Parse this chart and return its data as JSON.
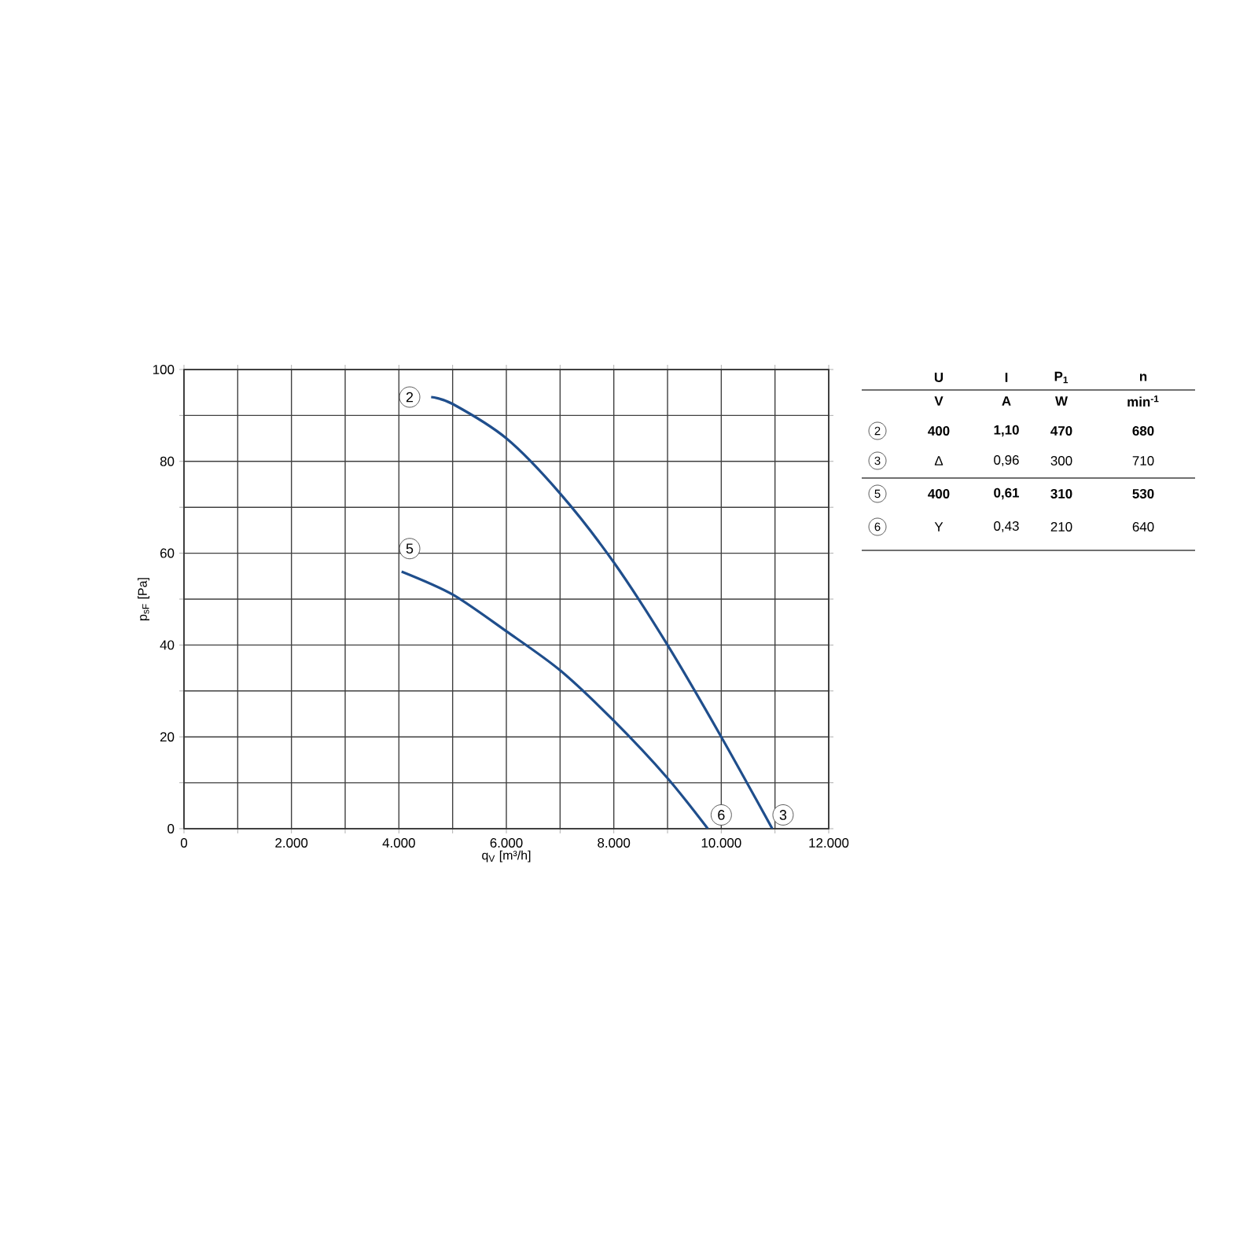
{
  "chart_data": {
    "type": "line",
    "xlabel": "q$_{V}$ [m³/h]",
    "ylabel": "p$_{sF}$ [Pa]",
    "xlim": [
      0,
      12000
    ],
    "ylim": [
      0,
      100
    ],
    "xticks": [
      {
        "value": 0,
        "label": "0"
      },
      {
        "value": 1000,
        "label": null
      },
      {
        "value": 2000,
        "label": "2.000"
      },
      {
        "value": 3000,
        "label": null
      },
      {
        "value": 4000,
        "label": "4.000"
      },
      {
        "value": 5000,
        "label": null
      },
      {
        "value": 6000,
        "label": "6.000"
      },
      {
        "value": 7000,
        "label": null
      },
      {
        "value": 8000,
        "label": "8.000"
      },
      {
        "value": 9000,
        "label": null
      },
      {
        "value": 10000,
        "label": "10.000"
      },
      {
        "value": 11000,
        "label": null
      },
      {
        "value": 12000,
        "label": "12.000"
      }
    ],
    "yticks": [
      0,
      {
        "value": 10,
        "label": null
      },
      20,
      {
        "value": 30,
        "label": null
      },
      40,
      {
        "value": 50,
        "label": null
      },
      60,
      {
        "value": 70,
        "label": null
      },
      80,
      {
        "value": 90,
        "label": null
      },
      100
    ],
    "grid": true,
    "marker": "none",
    "line_style": "solid",
    "series": [
      {
        "color": "#1f4e8c",
        "x": [
          4600,
          5000,
          6000,
          7000,
          8000,
          9000,
          10000,
          10950
        ],
        "values": [
          94,
          92.5,
          85,
          73,
          58,
          40,
          20,
          0
        ]
      },
      {
        "color": "#1f4e8c",
        "x": [
          4050,
          5000,
          6000,
          7000,
          8000,
          9000,
          9750
        ],
        "values": [
          56,
          51,
          43,
          34.5,
          23.5,
          11,
          0
        ]
      }
    ],
    "annotations": [
      {
        "text": "2",
        "x": 4200,
        "y": 94
      },
      {
        "text": "5",
        "x": 4200,
        "y": 61
      },
      {
        "text": "6",
        "x": 10000,
        "y": 3
      },
      {
        "text": "3",
        "x": 11150,
        "y": 3
      },
      "U",
      "I",
      "P$_{1}$",
      "n",
      "V",
      "A",
      "W",
      "min$^{-1}$",
      "2",
      "400",
      "1,10",
      "470",
      "680",
      "3",
      "Δ",
      "0,96",
      "300",
      "710",
      "5",
      "400",
      "0,61",
      "310",
      "530",
      "6",
      "Y",
      "0,43",
      "210",
      "640"
    ]
  }
}
